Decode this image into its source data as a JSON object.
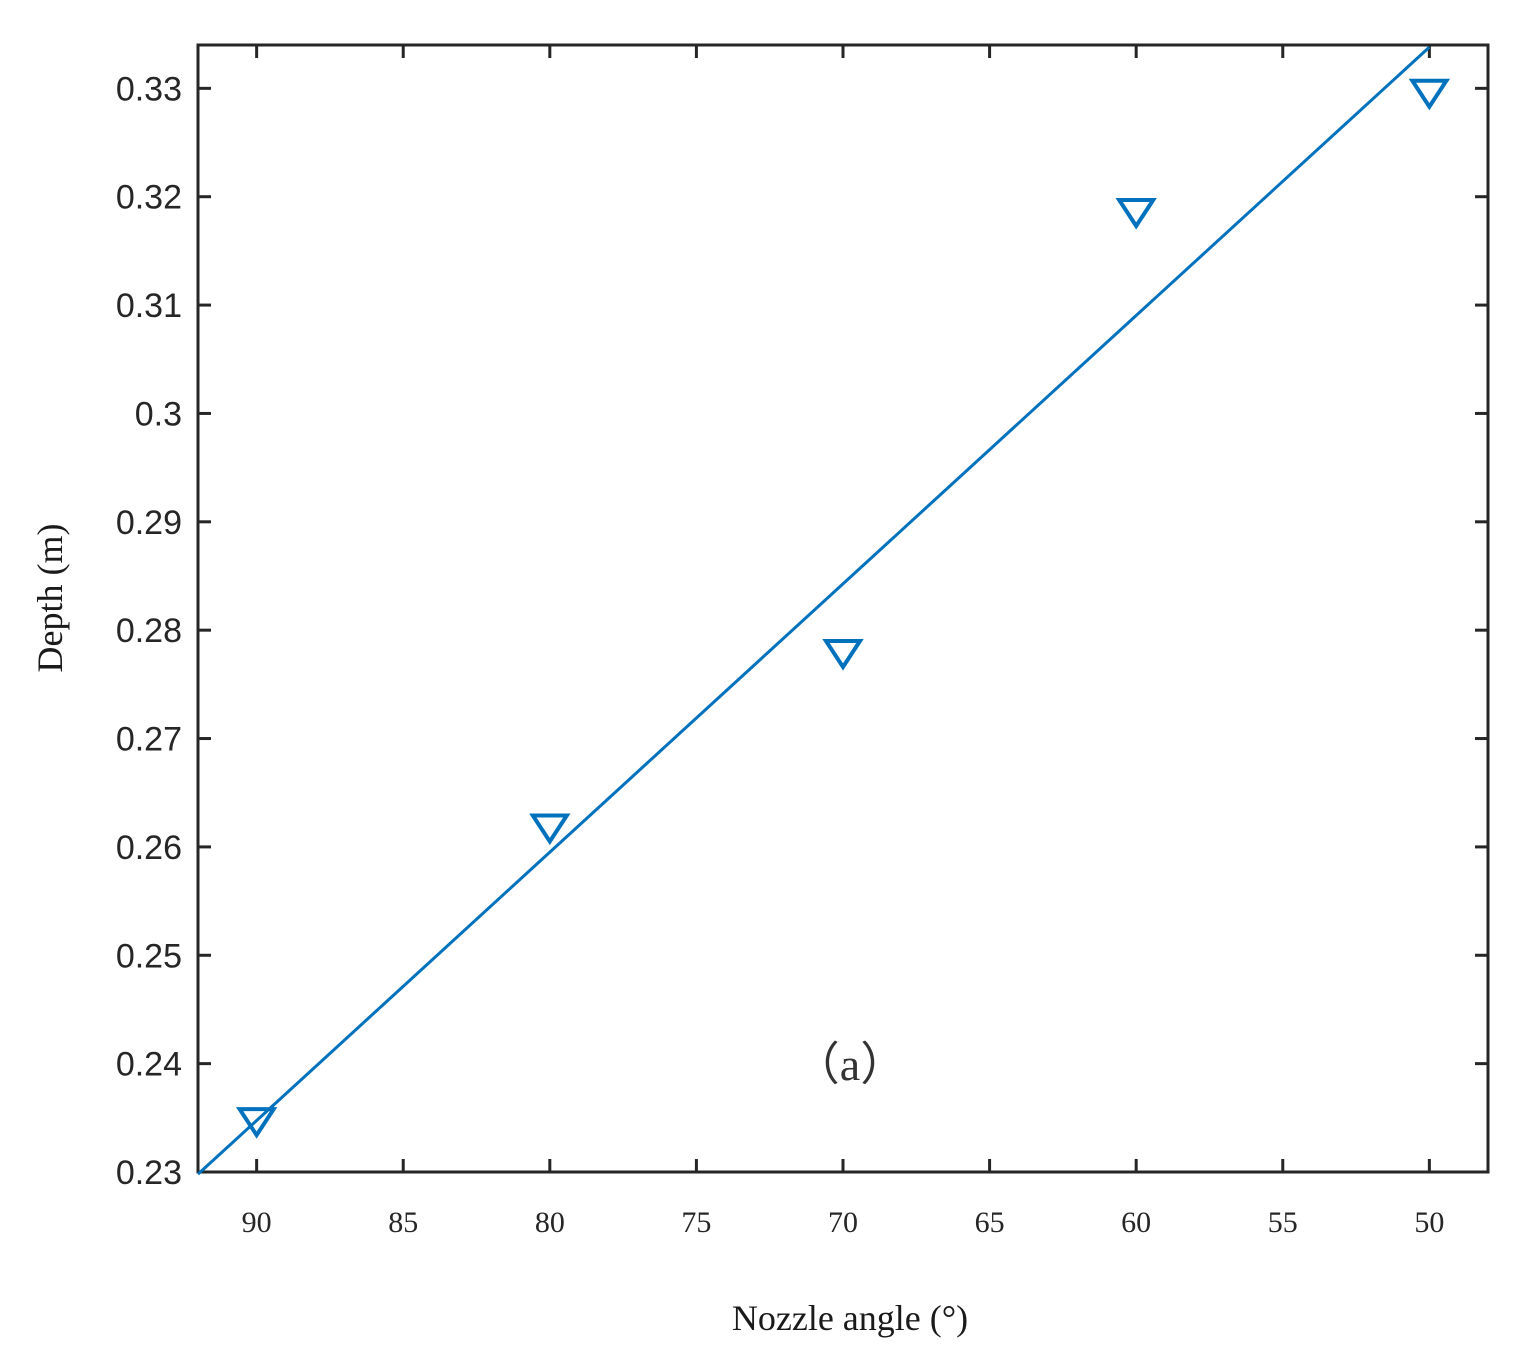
{
  "chart_data": {
    "type": "scatter",
    "xlabel": "Nozzle angle (°)",
    "ylabel": "Depth (m)",
    "annotation": "（a）",
    "x_reversed": true,
    "xlim": [
      92,
      48
    ],
    "ylim": [
      0.23,
      0.334
    ],
    "xticks": [
      90,
      85,
      80,
      75,
      70,
      65,
      60,
      55,
      50
    ],
    "yticks": [
      0.23,
      0.24,
      0.25,
      0.26,
      0.27,
      0.28,
      0.29,
      0.3,
      0.31,
      0.32,
      0.33
    ],
    "ytick_labels": [
      "0.23",
      "0.24",
      "0.25",
      "0.26",
      "0.27",
      "0.28",
      "0.29",
      "0.3",
      "0.31",
      "0.32",
      "0.33"
    ],
    "grid": false,
    "series": [
      {
        "kind": "points",
        "marker": "triangle-down",
        "color": "#0072BD",
        "x": [
          90,
          80,
          70,
          60,
          50
        ],
        "y": [
          0.2346,
          0.2617,
          0.2778,
          0.3185,
          0.3295
        ]
      },
      {
        "kind": "fit-line",
        "color": "#0072BD",
        "x": [
          92,
          50
        ],
        "y": [
          0.2298,
          0.3338
        ]
      }
    ]
  }
}
